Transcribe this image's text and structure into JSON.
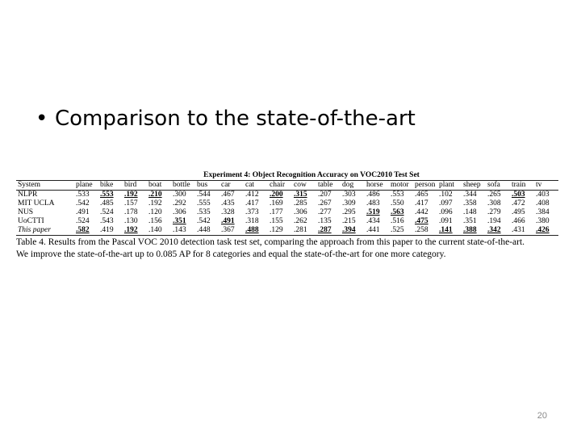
{
  "bullet": {
    "symbol": "•",
    "text": "Comparison to the state-of-the-art"
  },
  "table": {
    "title": "Experiment 4: Object Recognition Accuracy on VOC2010 Test Set",
    "header_label": "System",
    "columns": [
      "plane",
      "bike",
      "bird",
      "boat",
      "bottle",
      "bus",
      "car",
      "cat",
      "chair",
      "cow",
      "table",
      "dog",
      "horse",
      "motor",
      "person",
      "plant",
      "sheep",
      "sofa",
      "train",
      "tv"
    ],
    "rows": [
      {
        "system": "NLPR",
        "italic": false,
        "values": [
          ".533",
          ".553",
          ".192",
          ".210",
          ".300",
          ".544",
          ".467",
          ".412",
          ".200",
          ".315",
          ".207",
          ".303",
          ".486",
          ".553",
          ".465",
          ".102",
          ".344",
          ".265",
          ".503",
          ".403"
        ],
        "bold": [
          1,
          2,
          3,
          8,
          9,
          18
        ]
      },
      {
        "system": "MIT UCLA",
        "italic": false,
        "values": [
          ".542",
          ".485",
          ".157",
          ".192",
          ".292",
          ".555",
          ".435",
          ".417",
          ".169",
          ".285",
          ".267",
          ".309",
          ".483",
          ".550",
          ".417",
          ".097",
          ".358",
          ".308",
          ".472",
          ".408"
        ],
        "bold": []
      },
      {
        "system": "NUS",
        "italic": false,
        "values": [
          ".491",
          ".524",
          ".178",
          ".120",
          ".306",
          ".535",
          ".328",
          ".373",
          ".177",
          ".306",
          ".277",
          ".295",
          ".519",
          ".563",
          ".442",
          ".096",
          ".148",
          ".279",
          ".495",
          ".384"
        ],
        "bold": [
          12,
          13
        ]
      },
      {
        "system": "UoCTTI",
        "italic": false,
        "values": [
          ".524",
          ".543",
          ".130",
          ".156",
          ".351",
          ".542",
          ".491",
          ".318",
          ".155",
          ".262",
          ".135",
          ".215",
          ".434",
          ".516",
          ".475",
          ".091",
          ".351",
          ".194",
          ".466",
          ".380"
        ],
        "bold": [
          4,
          6,
          14
        ]
      },
      {
        "system": "This paper",
        "italic": true,
        "values": [
          ".582",
          ".419",
          ".192",
          ".140",
          ".143",
          ".448",
          ".367",
          ".488",
          ".129",
          ".281",
          ".287",
          ".394",
          ".441",
          ".525",
          ".258",
          ".141",
          ".388",
          ".342",
          ".431",
          ".426"
        ],
        "bold": [
          0,
          2,
          7,
          10,
          11,
          15,
          16,
          17,
          19
        ]
      }
    ],
    "caption_line1": "Table 4. Results from the Pascal VOC 2010 detection task test set, comparing the approach from this paper to the current state-of-the-art.",
    "caption_line2": "We improve the state-of-the-art up to 0.085 AP for 8 categories and equal the state-of-the-art for one more category."
  },
  "slide_number": "20"
}
